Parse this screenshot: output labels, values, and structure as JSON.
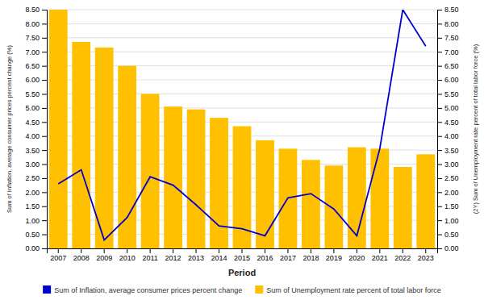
{
  "chart_data": {
    "type": "bar",
    "xlabel": "Period",
    "ylabel": "Sum of Inflation, average consumer prices percent change (%)",
    "y2label": "(2Y) Sum of Unemployment rate percent of total labor force (%)",
    "categories": [
      "2007",
      "2008",
      "2009",
      "2010",
      "2011",
      "2012",
      "2013",
      "2014",
      "2015",
      "2016",
      "2017",
      "2018",
      "2019",
      "2020",
      "2021",
      "2022",
      "2023"
    ],
    "series": [
      {
        "name": "Sum of Inflation, average consumer prices percent change",
        "type": "line",
        "axis": "y2",
        "color": "#0000CD",
        "values": [
          2.3,
          2.8,
          0.3,
          1.1,
          2.55,
          2.25,
          1.55,
          0.8,
          0.7,
          0.45,
          1.8,
          1.95,
          1.4,
          0.45,
          3.55,
          8.5,
          7.2
        ]
      },
      {
        "name": "Sum of Unemployment rate percent of total labor force",
        "type": "bar",
        "color": "#FFC000",
        "values": [
          8.5,
          7.35,
          7.15,
          6.5,
          5.5,
          5.05,
          4.95,
          4.65,
          4.35,
          3.85,
          3.55,
          3.15,
          2.95,
          3.6,
          3.55,
          2.9,
          3.35
        ]
      }
    ],
    "ylim": [
      0.0,
      8.5
    ],
    "yticks": [
      {
        "value": 0,
        "label": "0.00"
      },
      {
        "value": 0.5,
        "label": "0.50"
      },
      {
        "value": 1,
        "label": "1.00"
      },
      {
        "value": 1.5,
        "label": "1.50"
      },
      {
        "value": 2,
        "label": "2.00"
      },
      {
        "value": 2.5,
        "label": "2.50"
      },
      {
        "value": 3,
        "label": "3.00"
      },
      {
        "value": 3.5,
        "label": "3.50"
      },
      {
        "value": 4,
        "label": "4.00"
      },
      {
        "value": 4.5,
        "label": "4.50"
      },
      {
        "value": 5,
        "label": "5.00"
      },
      {
        "value": 5.5,
        "label": "5.50"
      },
      {
        "value": 6,
        "label": "6.00"
      },
      {
        "value": 6.5,
        "label": "6.50"
      },
      {
        "value": 7,
        "label": "7.00"
      },
      {
        "value": 7.5,
        "label": "7.50"
      },
      {
        "value": 8,
        "label": "8.00"
      },
      {
        "value": 8.5,
        "label": "8.50"
      }
    ],
    "y2lim": [
      0.0,
      8.5
    ],
    "y2ticks": [
      {
        "value": 0,
        "label": "0.00"
      },
      {
        "value": 0.5,
        "label": "0.50"
      },
      {
        "value": 1,
        "label": "1.00"
      },
      {
        "value": 1.5,
        "label": "1.50"
      },
      {
        "value": 2,
        "label": "2.00"
      },
      {
        "value": 2.5,
        "label": "2.50"
      },
      {
        "value": 3,
        "label": "3.00"
      },
      {
        "value": 3.5,
        "label": "3.50"
      },
      {
        "value": 4,
        "label": "4.00"
      },
      {
        "value": 4.5,
        "label": "4.50"
      },
      {
        "value": 5,
        "label": "5.00"
      },
      {
        "value": 5.5,
        "label": "5.50"
      },
      {
        "value": 6,
        "label": "6.00"
      },
      {
        "value": 6.5,
        "label": "6.50"
      },
      {
        "value": 7,
        "label": "7.00"
      },
      {
        "value": 7.5,
        "label": "7.50"
      },
      {
        "value": 8,
        "label": "8.00"
      },
      {
        "value": 8.5,
        "label": "8.50"
      }
    ],
    "grid": true,
    "legend": "bottom"
  }
}
